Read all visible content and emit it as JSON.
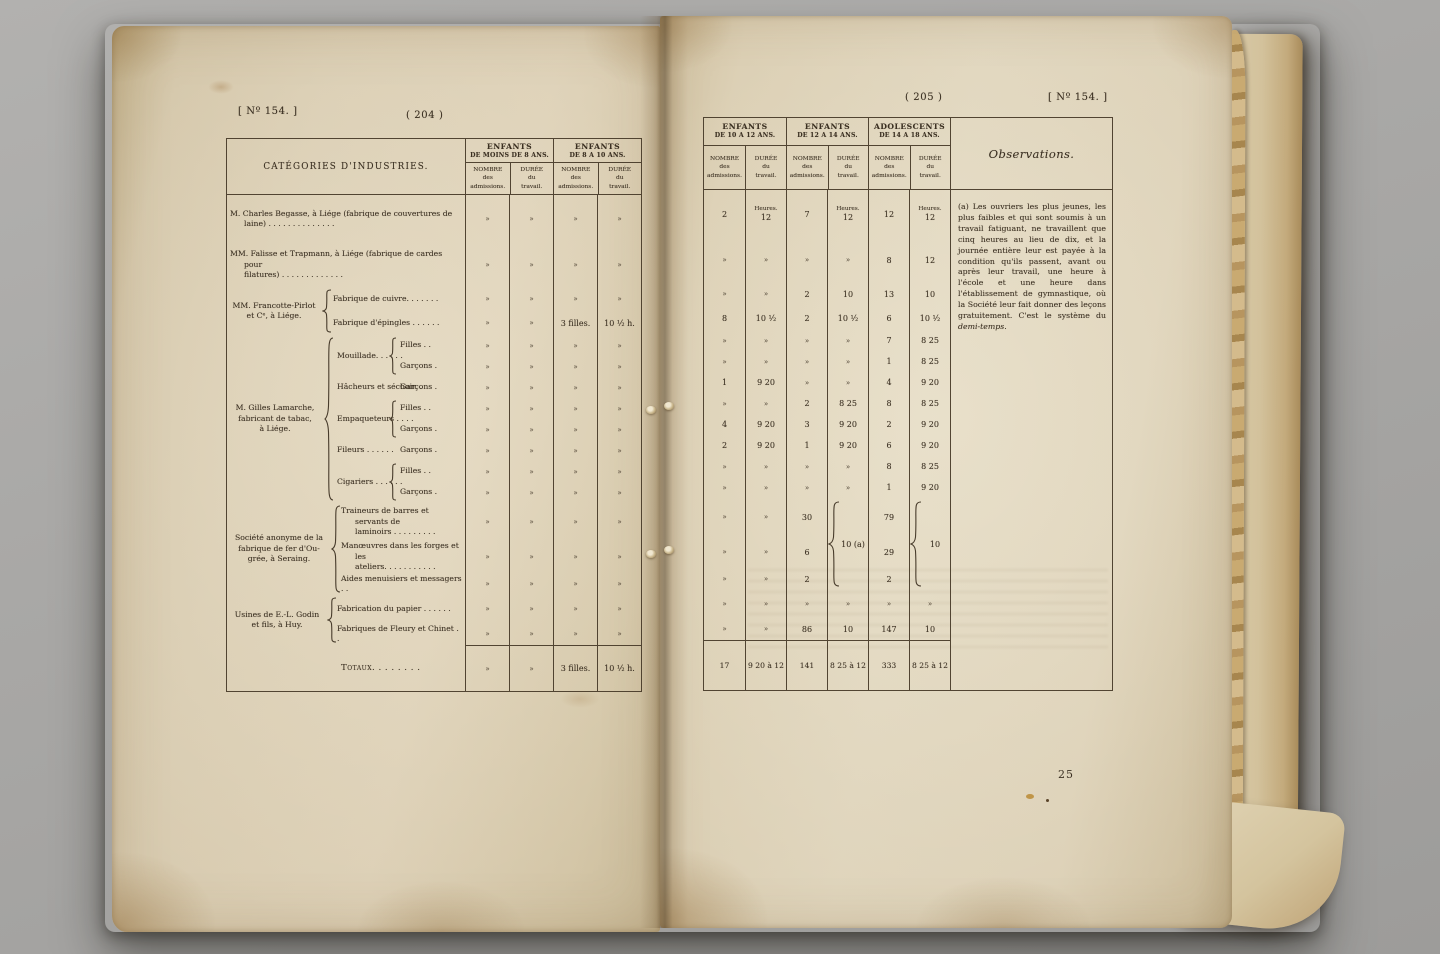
{
  "left_page": {
    "doc_ref": "[ Nº 154. ]",
    "page_no": "( 204 )"
  },
  "right_page": {
    "page_no": "( 205 )",
    "doc_ref": "[ Nº 154. ]",
    "page_number": "25"
  },
  "left_table": {
    "category_header": "CATÉGORIES D'INDUSTRIES.",
    "header_groups": [
      {
        "line1": "ENFANTS",
        "line2": "DE MOINS DE 8 ANS."
      },
      {
        "line1": "ENFANTS",
        "line2": "DE 8 A 10 ANS."
      }
    ],
    "sub_nombre": "NOMBRE\ndes\nadmissions.",
    "sub_duree": "DURÉE\ndu\ntravail.",
    "cat_groups": [
      {
        "label": "MM. Francotte-Pirlot\net Cᵉ, à Liége."
      },
      {
        "label": "M. Gilles Lamarche,\nfabricant de tabac,\nà Liége."
      },
      {
        "label": "Société anonyme de la\nfabrique de fer d'Ou-\ngrée, à Seraing."
      },
      {
        "label": "Usines de E.-L. Godin\net fils, à Huy."
      }
    ],
    "spans": [
      "Mouillade. . . . . .",
      "Empaqueteurs . . . .",
      "Cigariers . . . . . ."
    ],
    "subs": {
      "filles": "Filles . .",
      "garcons": "Garçons ."
    },
    "rows": [
      {
        "label": "M. Charles Begasse, à Liége (fabrique de couvertures de\nlaine) . . . . . . . . . . . . . .",
        "cells": [
          "»",
          "»",
          "»",
          "»"
        ]
      },
      {
        "label": "MM. Falisse et Trapmann, à Liége (fabrique de cardes pour\nfilatures) . . . . . . . . . . . . .",
        "cells": [
          "»",
          "»",
          "»",
          "»"
        ]
      },
      {
        "label": "Fabrique de cuivre. . . . . . .",
        "cells": [
          "»",
          "»",
          "»",
          "»"
        ]
      },
      {
        "label": "Fabrique d'épingles . . . . . .",
        "cells": [
          "»",
          "»",
          "3 filles.",
          "10 ¹⁄₂ h."
        ]
      },
      {
        "label": "",
        "cells": [
          "»",
          "»",
          "»",
          "»"
        ]
      },
      {
        "label": "",
        "cells": [
          "»",
          "»",
          "»",
          "»"
        ]
      },
      {
        "label": "Hâcheurs et séchoir. .",
        "cells": [
          "»",
          "»",
          "»",
          "»"
        ]
      },
      {
        "label": "",
        "cells": [
          "»",
          "»",
          "»",
          "»"
        ]
      },
      {
        "label": "",
        "cells": [
          "»",
          "»",
          "»",
          "»"
        ]
      },
      {
        "label": "Fileurs . . . . . .",
        "cells": [
          "»",
          "»",
          "»",
          "»"
        ]
      },
      {
        "label": "",
        "cells": [
          "»",
          "»",
          "»",
          "»"
        ]
      },
      {
        "label": "",
        "cells": [
          "»",
          "»",
          "»",
          "»"
        ]
      },
      {
        "label": "Traineurs de barres et servants de\nlaminoirs . . . . . . . . .",
        "cells": [
          "»",
          "»",
          "»",
          "»"
        ]
      },
      {
        "label": "Manœuvres dans les forges et les\nateliers. . . . . . . . . . .",
        "cells": [
          "»",
          "»",
          "»",
          "»"
        ]
      },
      {
        "label": "Aides menuisiers et messagers . .",
        "cells": [
          "»",
          "»",
          "»",
          "»"
        ]
      },
      {
        "label": "Fabrication du papier . . . . . .",
        "cells": [
          "»",
          "»",
          "»",
          "»"
        ]
      },
      {
        "label": "Fabriques de Fleury et Chinet . .",
        "cells": [
          "»",
          "»",
          "»",
          "»"
        ]
      }
    ],
    "totals": {
      "label": "Totaux. . . . . . . .",
      "cells": [
        "»",
        "»",
        "3 filles.",
        "10 ¹⁄₂ h."
      ]
    }
  },
  "right_table": {
    "header_groups": [
      {
        "line1": "ENFANTS",
        "line2": "DE 10 A 12 ANS."
      },
      {
        "line1": "ENFANTS",
        "line2": "DE 12 A 14 ANS."
      },
      {
        "line1": "ADOLESCENTS",
        "line2": "DE 14 A 18 ANS."
      }
    ],
    "sub_nombre": "NOMBRE\ndes\nadmissions.",
    "sub_duree": "DURÉE\ndu\ntravail.",
    "obs_title": "Observations.",
    "heures": "Heures.",
    "rows": [
      {
        "heures": true,
        "cells": [
          "2",
          "12",
          "7",
          "12",
          "12",
          "12"
        ]
      },
      {
        "cells": [
          "»",
          "»",
          "»",
          "»",
          "8",
          "12"
        ]
      },
      {
        "cells": [
          "»",
          "»",
          "2",
          "10",
          "13",
          "10"
        ]
      },
      {
        "cells": [
          "8",
          "10 ¹⁄₂",
          "2",
          "10 ¹⁄₂",
          "6",
          "10 ¹⁄₂"
        ]
      },
      {
        "cells": [
          "»",
          "»",
          "»",
          "»",
          "7",
          "8 25"
        ]
      },
      {
        "cells": [
          "»",
          "»",
          "»",
          "»",
          "1",
          "8 25"
        ]
      },
      {
        "cells": [
          "1",
          "9 20",
          "»",
          "»",
          "4",
          "9 20"
        ]
      },
      {
        "cells": [
          "»",
          "»",
          "2",
          "8 25",
          "8",
          "8 25"
        ]
      },
      {
        "cells": [
          "4",
          "9 20",
          "3",
          "9 20",
          "2",
          "9 20"
        ]
      },
      {
        "cells": [
          "2",
          "9 20",
          "1",
          "9 20",
          "6",
          "9 20"
        ]
      },
      {
        "cells": [
          "»",
          "»",
          "»",
          "»",
          "8",
          "8 25"
        ]
      },
      {
        "cells": [
          "»",
          "»",
          "»",
          "»",
          "1",
          "9 20"
        ]
      },
      {
        "cells": [
          "»",
          "»",
          "30",
          "",
          "79",
          ""
        ]
      },
      {
        "cells": [
          "»",
          "»",
          "6",
          "",
          "29",
          ""
        ]
      },
      {
        "cells": [
          "»",
          "»",
          "2",
          "",
          "2",
          ""
        ]
      },
      {
        "cells": [
          "»",
          "»",
          "»",
          "»",
          "»",
          "»"
        ]
      },
      {
        "cells": [
          "»",
          "»",
          "86",
          "10",
          "147",
          "10"
        ]
      }
    ],
    "brace_labels": [
      "10 (a)",
      "10"
    ],
    "totals": {
      "cells": [
        "17",
        "9 20 à 12",
        "141",
        "8 25 à 12",
        "333",
        "8 25 à 12"
      ]
    },
    "note_main": "(a) Les ouvriers les plus jeunes, les plus faibles et qui sont soumis à un travail fatiguant, ne travaillent que cinq heures au lieu de dix, et la journée entière leur est payée à la condition qu'ils passent, avant ou après leur travail, une heure à l'école et une heure dans l'établissement de gymnastique, où la Société leur fait donner des leçons gratuitement. C'est le système du ",
    "note_italic": "demi-temps",
    "note_end": "."
  }
}
